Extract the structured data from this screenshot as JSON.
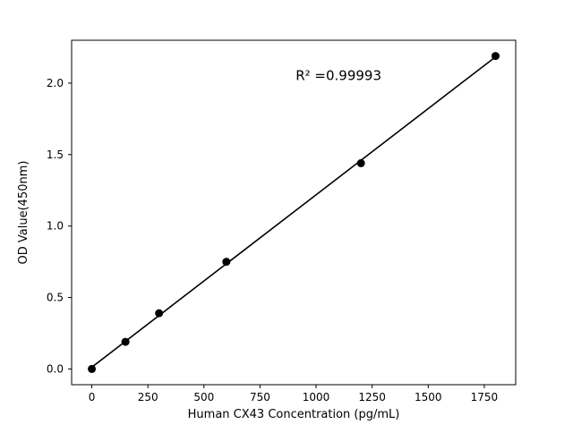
{
  "figure": {
    "background": "#ffffff",
    "foreground": "#000000"
  },
  "chart_data": {
    "type": "scatter",
    "title": "",
    "xlabel": "Human CX43 Concentration (pg/mL)",
    "ylabel": "OD Value(450nm)",
    "x": [
      0,
      150,
      300,
      600,
      1200,
      1800
    ],
    "y": [
      0.0,
      0.19,
      0.39,
      0.75,
      1.44,
      2.19
    ],
    "fit_line": true,
    "marker_color": "#000000",
    "line_color": "#000000",
    "xlim": [
      -90,
      1890
    ],
    "ylim": [
      -0.11,
      2.3
    ],
    "grid": false,
    "xticks": [
      {
        "v": 0,
        "label": "0"
      },
      {
        "v": 250,
        "label": "250"
      },
      {
        "v": 500,
        "label": "500"
      },
      {
        "v": 750,
        "label": "750"
      },
      {
        "v": 1000,
        "label": "1000"
      },
      {
        "v": 1250,
        "label": "1250"
      },
      {
        "v": 1500,
        "label": "1500"
      },
      {
        "v": 1750,
        "label": "1750"
      }
    ],
    "yticks": [
      {
        "v": 0.0,
        "label": "0.0"
      },
      {
        "v": 0.5,
        "label": "0.5"
      },
      {
        "v": 1.0,
        "label": "1.0"
      },
      {
        "v": 1.5,
        "label": "1.5"
      },
      {
        "v": 2.0,
        "label": "2.0"
      }
    ],
    "annotation": {
      "text": "R² =0.99993",
      "x": 1100,
      "y": 2.02,
      "anchor": "middle"
    }
  }
}
